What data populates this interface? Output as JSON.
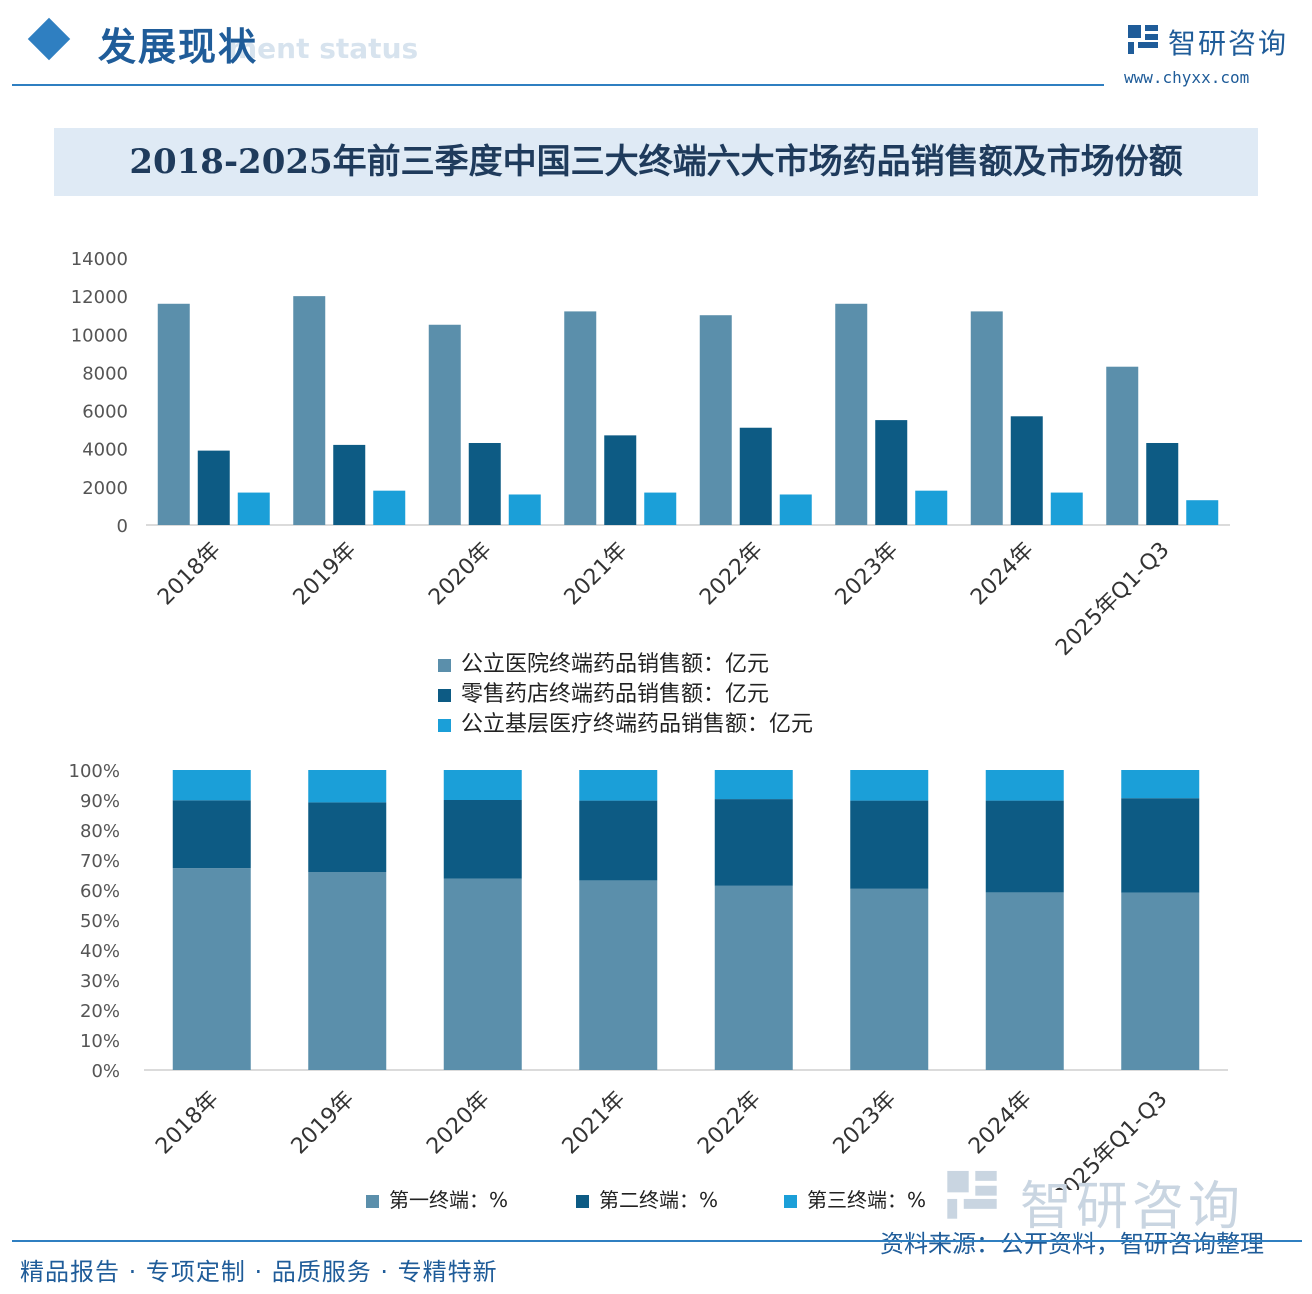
{
  "header": {
    "section_title": "发展现状",
    "section_subtitle": "ment status",
    "brand_name": "智研咨询",
    "brand_url": "www.chyxx.com"
  },
  "title": "2018-2025年前三季度中国三大终端六大市场药品销售额及市场份额",
  "chart_data": [
    {
      "type": "bar",
      "categories": [
        "2018年",
        "2019年",
        "2020年",
        "2021年",
        "2022年",
        "2023年",
        "2024年",
        "2025年Q1-Q3"
      ],
      "series": [
        {
          "name": "公立医院终端药品销售额：亿元",
          "color": "#5b8fab",
          "values": [
            11600,
            12000,
            10500,
            11200,
            11000,
            11600,
            11200,
            8300
          ]
        },
        {
          "name": "零售药店终端药品销售额：亿元",
          "color": "#0d5b84",
          "values": [
            3900,
            4200,
            4300,
            4700,
            5100,
            5500,
            5700,
            4300
          ]
        },
        {
          "name": "公立基层医疗终端药品销售额：亿元",
          "color": "#1b9fd8",
          "values": [
            1700,
            1800,
            1600,
            1700,
            1600,
            1800,
            1700,
            1300
          ]
        }
      ],
      "yticks": [
        "0",
        "2000",
        "4000",
        "6000",
        "8000",
        "10000",
        "12000",
        "14000"
      ],
      "ylim": [
        0,
        14000
      ],
      "grid": false,
      "legend": "bottom"
    },
    {
      "type": "bar",
      "stacked": true,
      "categories": [
        "2018年",
        "2019年",
        "2020年",
        "2021年",
        "2022年",
        "2023年",
        "2024年",
        "2025年Q1-Q3"
      ],
      "series": [
        {
          "name": "第一终端：%",
          "color": "#5b8fab",
          "values": [
            67.3,
            66.0,
            63.8,
            63.2,
            61.4,
            60.4,
            59.2,
            59.1
          ]
        },
        {
          "name": "第二终端：%",
          "color": "#0d5b84",
          "values": [
            22.6,
            23.2,
            26.2,
            26.6,
            28.9,
            29.4,
            30.6,
            31.5
          ]
        },
        {
          "name": "第三终端：%",
          "color": "#1b9fd8",
          "values": [
            10.1,
            10.8,
            10.0,
            10.2,
            9.7,
            10.2,
            10.2,
            9.4
          ]
        }
      ],
      "yticks": [
        "0%",
        "10%",
        "20%",
        "30%",
        "40%",
        "50%",
        "60%",
        "70%",
        "80%",
        "90%",
        "100%"
      ],
      "ylim": [
        0,
        100
      ],
      "grid": false,
      "legend": "bottom"
    }
  ],
  "footer": {
    "tagline": "精品报告 · 专项定制 · 品质服务 · 专精特新",
    "source": "资料来源：公开资料，智研咨询整理",
    "watermark": "智研咨询"
  }
}
